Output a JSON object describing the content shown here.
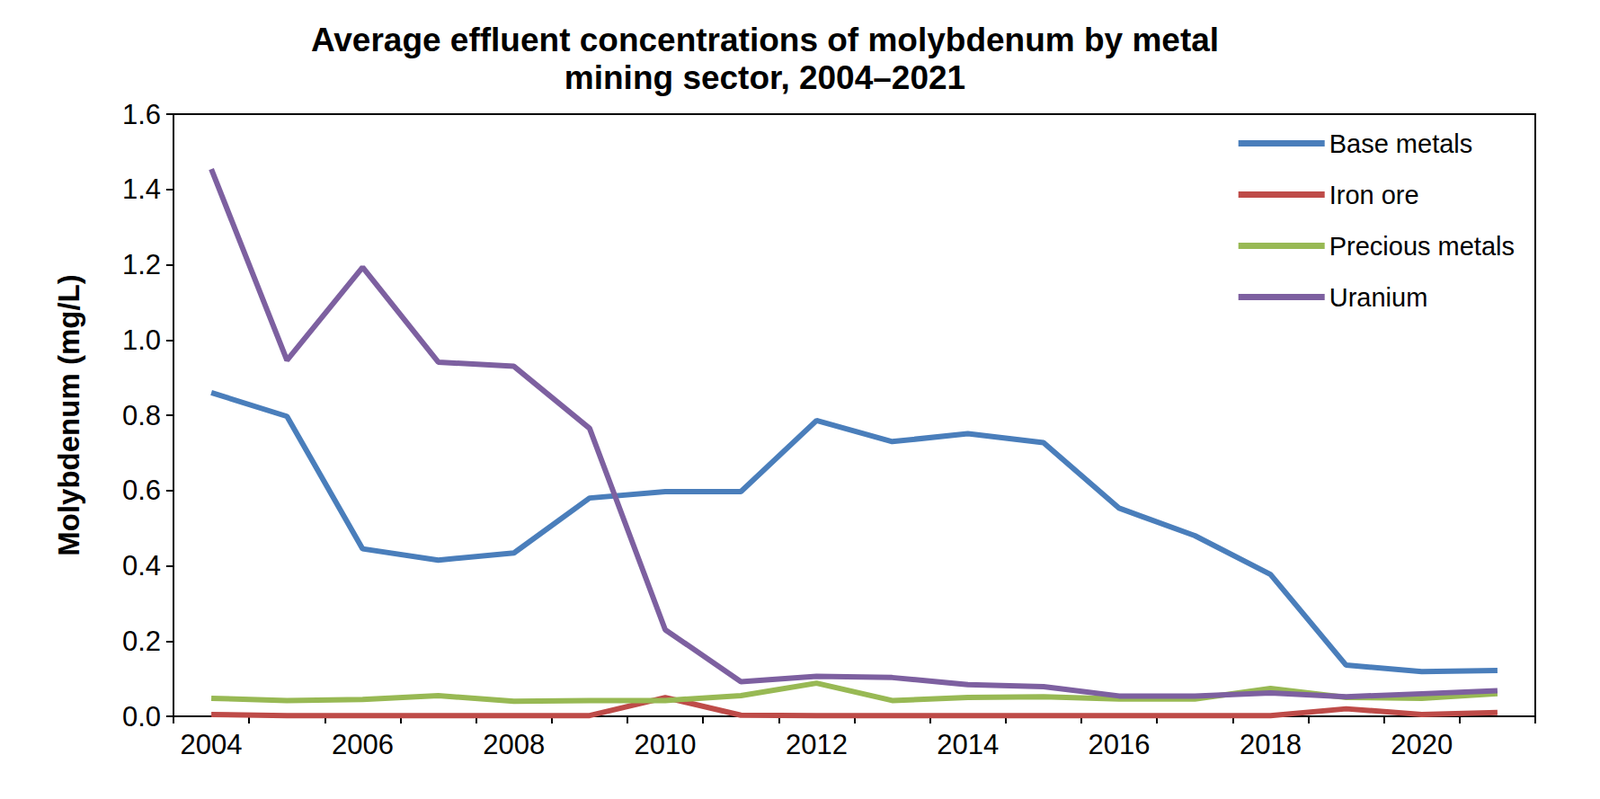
{
  "chart_data": {
    "type": "line",
    "title": "Average effluent concentrations of molybdenum by metal\nmining sector, 2004–2021",
    "y_label": "Molybdenum (mg/L)",
    "categories": [
      "2004",
      null,
      "2006",
      null,
      "2008",
      null,
      "2010",
      null,
      "2012",
      null,
      "2014",
      null,
      "2016",
      null,
      "2018",
      null,
      "2020",
      null
    ],
    "series": [
      {
        "name": "Base metals",
        "color": "#4a7ebb",
        "values": [
          0.86,
          0.797,
          0.445,
          0.415,
          0.434,
          0.58,
          0.597,
          0.597,
          0.786,
          0.73,
          0.751,
          0.727,
          0.553,
          0.48,
          0.377,
          0.136,
          0.119,
          0.122
        ]
      },
      {
        "name": "Iron ore",
        "color": "#be4b48",
        "values": [
          0.005,
          0.002,
          0.002,
          0.002,
          0.002,
          0.002,
          0.05,
          0.003,
          0.002,
          0.002,
          0.002,
          0.002,
          0.002,
          0.002,
          0.002,
          0.02,
          0.005,
          0.01
        ]
      },
      {
        "name": "Precious metals",
        "color": "#98b954",
        "values": [
          0.048,
          0.042,
          0.045,
          0.055,
          0.04,
          0.042,
          0.042,
          0.055,
          0.088,
          0.042,
          0.05,
          0.052,
          0.046,
          0.046,
          0.074,
          0.05,
          0.048,
          0.06
        ]
      },
      {
        "name": "Uranium",
        "color": "#7d60a0",
        "values": [
          1.454,
          0.946,
          1.193,
          0.941,
          0.93,
          0.765,
          0.23,
          0.092,
          0.106,
          0.103,
          0.084,
          0.079,
          0.054,
          0.054,
          0.062,
          0.052,
          0.06,
          0.068
        ]
      }
    ],
    "ylim": [
      0,
      1.6
    ],
    "yticks": [
      {
        "value": 0,
        "label": "0.0"
      },
      {
        "value": 0.2,
        "label": "0.2"
      },
      {
        "value": 0.4,
        "label": "0.4"
      },
      {
        "value": 0.6,
        "label": "0.6"
      },
      {
        "value": 0.8,
        "label": "0.8"
      },
      {
        "value": 1,
        "label": "1.0"
      },
      {
        "value": 1.2,
        "label": "1.2"
      },
      {
        "value": 1.4,
        "label": "1.4"
      },
      {
        "value": 1.6,
        "label": "1.6"
      }
    ],
    "grid": false,
    "legend": "upper right"
  }
}
